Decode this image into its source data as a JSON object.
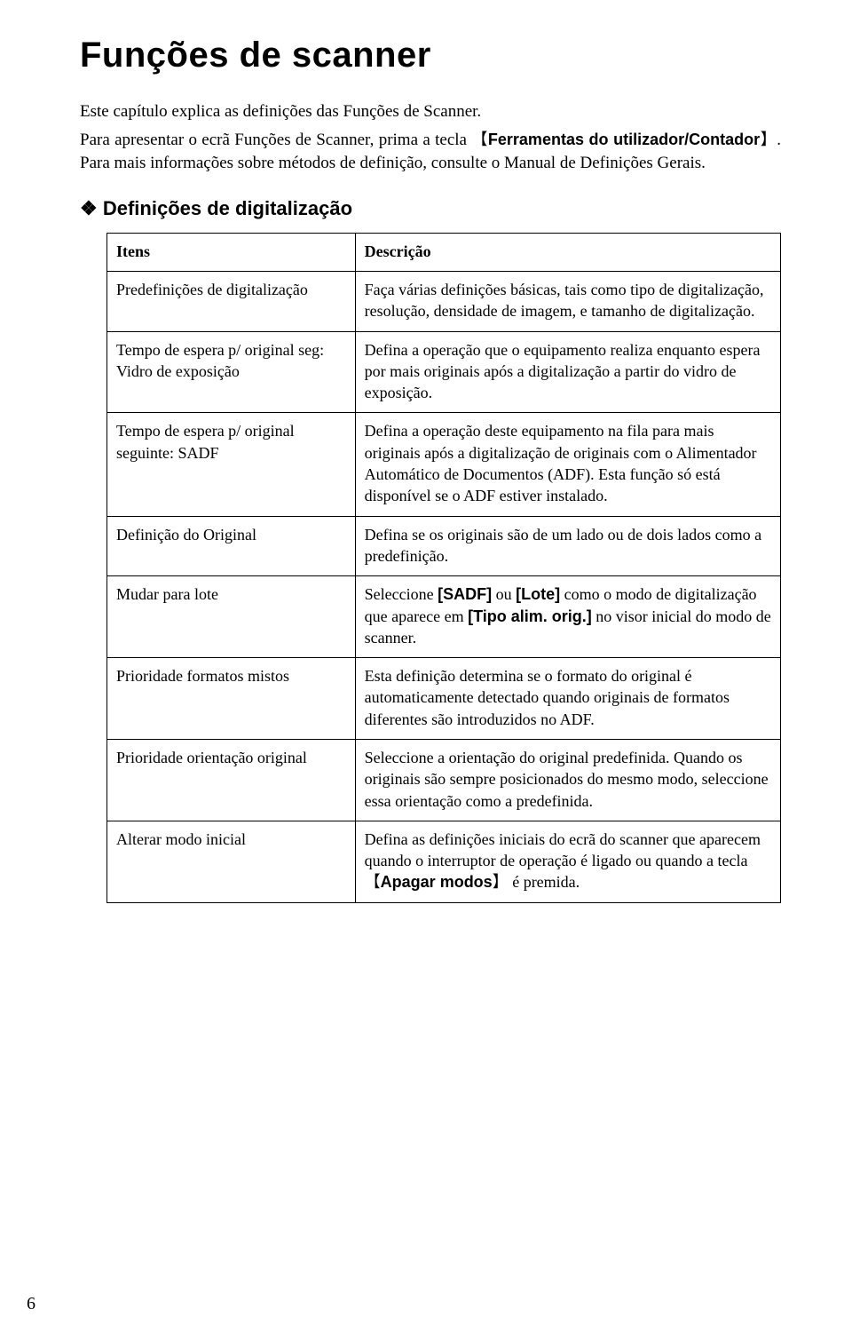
{
  "title": "Funções de scanner",
  "intro": {
    "p1": "Este capítulo explica as definições das Funções de Scanner.",
    "p2a": "Para apresentar o ecrã Funções de Scanner, prima a tecla ",
    "key1": "Ferramentas do utilizador/Contador",
    "p2b": ". Para mais informações sobre métodos de definição, consulte o Manual de Definições Gerais."
  },
  "section_heading": "Definições de digitalização",
  "table": {
    "header_items": "Itens",
    "header_desc": "Descrição",
    "rows": [
      {
        "item": "Predefinições de digitalização",
        "desc": "Faça várias definições básicas, tais como tipo de digitalização, resolução, densidade de imagem, e tamanho de digitalização."
      },
      {
        "item": "Tempo de espera p/ original seg: Vidro de exposição",
        "desc": "Defina a operação que o equipamento realiza enquanto espera por mais originais após a digitalização a partir do vidro de exposição."
      },
      {
        "item": "Tempo de espera p/ original seguinte: SADF",
        "desc": "Defina a operação deste equipamento na fila para mais originais após a digitalização de originais com o Alimentador Automático de Documentos (ADF). Esta função só está disponível se o ADF estiver instalado."
      },
      {
        "item": "Definição do Original",
        "desc": "Defina se os originais são de um lado ou de dois lados como a predefinição."
      },
      {
        "item": "Mudar para lote",
        "desc_pre": "Seleccione ",
        "opt1": "[SADF]",
        "mid1": " ou ",
        "opt2": "[Lote]",
        "mid2": " como o modo de digitalização que aparece em ",
        "opt3": "[Tipo alim. orig.]",
        "post": " no visor inicial do modo de scanner."
      },
      {
        "item": "Prioridade formatos mistos",
        "desc": "Esta definição determina se o formato do original é automaticamente detectado quando originais de formatos diferentes são introduzidos no ADF."
      },
      {
        "item": "Prioridade orientação original",
        "desc": "Seleccione a orientação do original predefinida. Quando os originais são sempre posicionados do mesmo modo, seleccione essa orientação como a predefinida."
      },
      {
        "item": "Alterar modo inicial",
        "desc_pre": "Defina as definições iniciais do ecrã do scanner que aparecem quando o interruptor de operação é ligado ou quando a tecla ",
        "key": "Apagar modos",
        "desc_post": " é premida."
      }
    ]
  },
  "page_number": "6"
}
